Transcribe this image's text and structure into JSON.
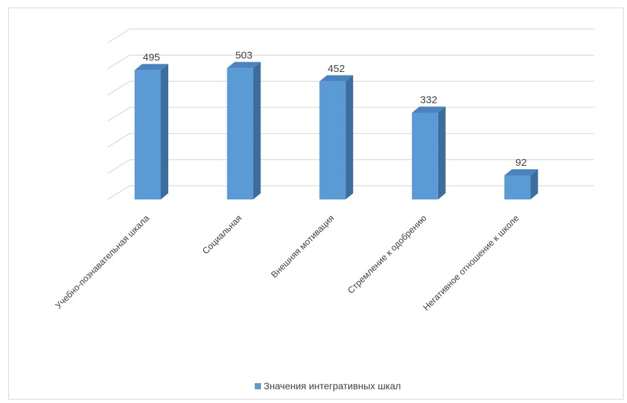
{
  "chart_data": {
    "type": "bar",
    "style": "3d-column",
    "categories": [
      "Учебно-познавательная шкала",
      "Социальная",
      "Внешняя мотивация",
      "Стремление к одобрению",
      "Негативное отношение к школе"
    ],
    "series": [
      {
        "name": "Значения интегративных шкал",
        "values": [
          495,
          503,
          452,
          332,
          92
        ],
        "color": "#5b9bd5"
      }
    ],
    "ylim": [
      0,
      600
    ],
    "grid": true,
    "y_tick_labels_visible": false,
    "legend_position": "bottom",
    "data_labels": true
  }
}
